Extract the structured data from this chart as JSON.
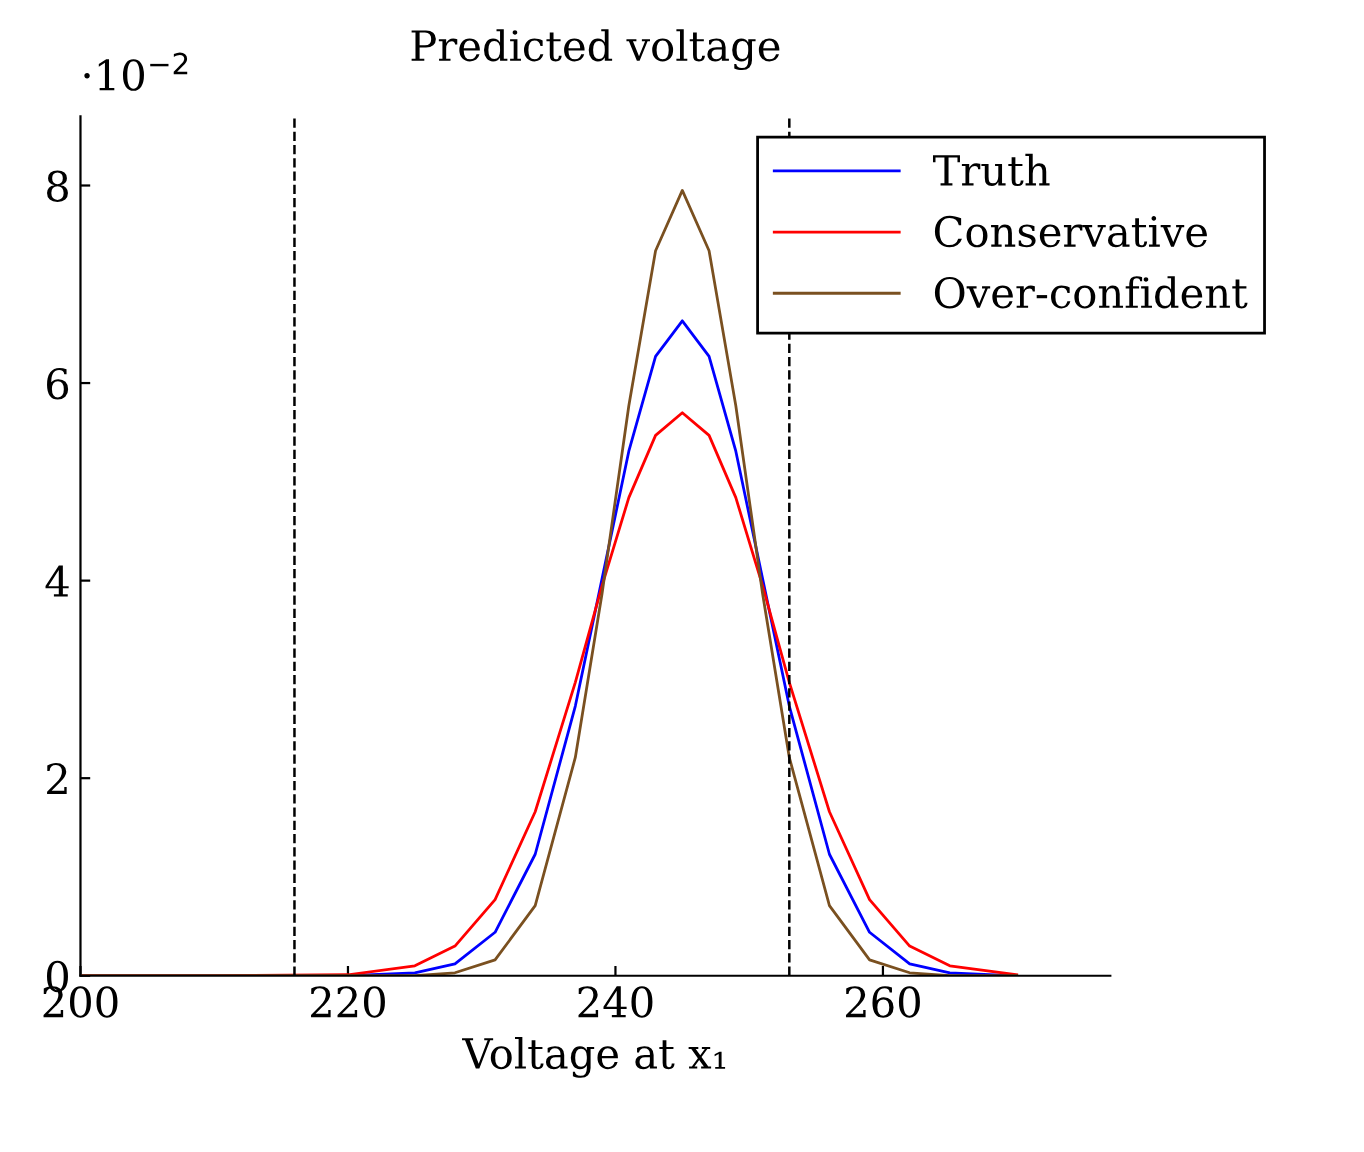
{
  "chart_data": {
    "type": "line",
    "title": "Predicted voltage",
    "xlabel": "Voltage at x₁",
    "annotations": [
      "·10$^{−2}$"
    ],
    "x": [
      200,
      210,
      220,
      225,
      228,
      231,
      234,
      237,
      239,
      241,
      243,
      245,
      247,
      249,
      251,
      253,
      256,
      259,
      262,
      265,
      270
    ],
    "series": [
      {
        "name": "Truth",
        "color": "#0000ff",
        "values": [
          0,
          0,
          0,
          0.03,
          0.12,
          0.44,
          1.23,
          2.73,
          4.02,
          5.31,
          6.27,
          6.63,
          6.27,
          5.31,
          4.02,
          2.73,
          1.23,
          0.44,
          0.12,
          0.03,
          0
        ]
      },
      {
        "name": "Conservative",
        "color": "#ff0000",
        "values": [
          0,
          0,
          0.01,
          0.1,
          0.3,
          0.77,
          1.66,
          2.97,
          3.95,
          4.84,
          5.47,
          5.7,
          5.47,
          4.84,
          3.95,
          2.97,
          1.66,
          0.77,
          0.3,
          0.1,
          0.01
        ]
      },
      {
        "name": "Over-confident",
        "color": "#7a5020",
        "values": [
          0,
          0,
          0,
          0,
          0.03,
          0.16,
          0.71,
          2.21,
          3.87,
          5.77,
          7.34,
          7.95,
          7.34,
          5.77,
          3.87,
          2.21,
          0.71,
          0.16,
          0.03,
          0,
          0
        ]
      }
    ],
    "xlim": [
      200,
      277
    ],
    "ylim": [
      0,
      8.7
    ],
    "xticks": [
      200,
      220,
      240,
      260
    ],
    "yticks": [
      0,
      2,
      4,
      6,
      8
    ],
    "ref_lines": [
      {
        "axis": "x",
        "value": 216,
        "color": "#000000",
        "line_style": "dashed"
      },
      {
        "axis": "x",
        "value": 253,
        "color": "#000000",
        "line_style": "dashed"
      }
    ],
    "grid": false,
    "legend": "top right",
    "line_style": "solid",
    "marker": "none"
  }
}
